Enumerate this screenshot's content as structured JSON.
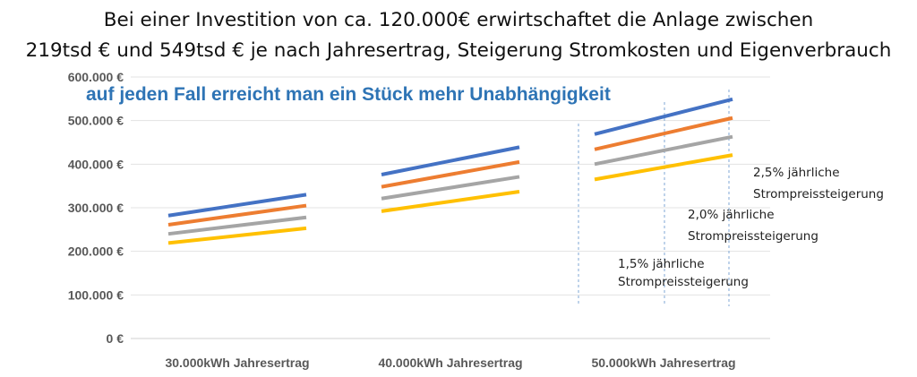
{
  "title": {
    "line1": "Bei einer Investition von ca. 120.000€ erwirtschaftet die Anlage zwischen",
    "line2": "219tsd € und 549tsd € je nach Jahresertrag, Steigerung Stromkosten und Eigenverbrauch"
  },
  "chart_data": {
    "type": "line",
    "title": "Bei einer Investition von ca. 120.000€ erwirtschaftet die Anlage zwischen 219tsd € und 549tsd € je nach Jahresertrag, Steigerung Stromkosten und Eigenverbrauch",
    "subtitle": "auf jeden Fall erreicht man ein Stück mehr Unabhängigkeit",
    "categories": [
      "30.000kWh Jahresertrag",
      "40.000kWh Jahresertrag",
      "50.000kWh Jahresertrag"
    ],
    "y_ticks": [
      "0 €",
      "100.000 €",
      "200.000 €",
      "300.000 €",
      "400.000 €",
      "500.000 €",
      "600.000 €"
    ],
    "ylim": [
      0,
      600000
    ],
    "grid": true,
    "series": [
      {
        "color": "#4472c4",
        "values": [
          [
            282000,
            330000
          ],
          [
            376000,
            439000
          ],
          [
            469000,
            549000
          ]
        ]
      },
      {
        "color": "#ed7d31",
        "values": [
          [
            261000,
            305000
          ],
          [
            348000,
            405000
          ],
          [
            434000,
            506000
          ]
        ]
      },
      {
        "color": "#a5a5a5",
        "values": [
          [
            240000,
            278000
          ],
          [
            321000,
            371000
          ],
          [
            400000,
            463000
          ]
        ]
      },
      {
        "color": "#ffc000",
        "values": [
          [
            219000,
            253000
          ],
          [
            292000,
            337000
          ],
          [
            365000,
            421000
          ]
        ]
      }
    ],
    "annotations": [
      {
        "line1": "1,5% jährliche",
        "line2": "Strompreissteigerung"
      },
      {
        "line1": "2,0% jährliche",
        "line2": "Strompreissteigerung"
      },
      {
        "line1": "2,5% jährliche",
        "line2": "Strompreissteigerung"
      }
    ]
  }
}
